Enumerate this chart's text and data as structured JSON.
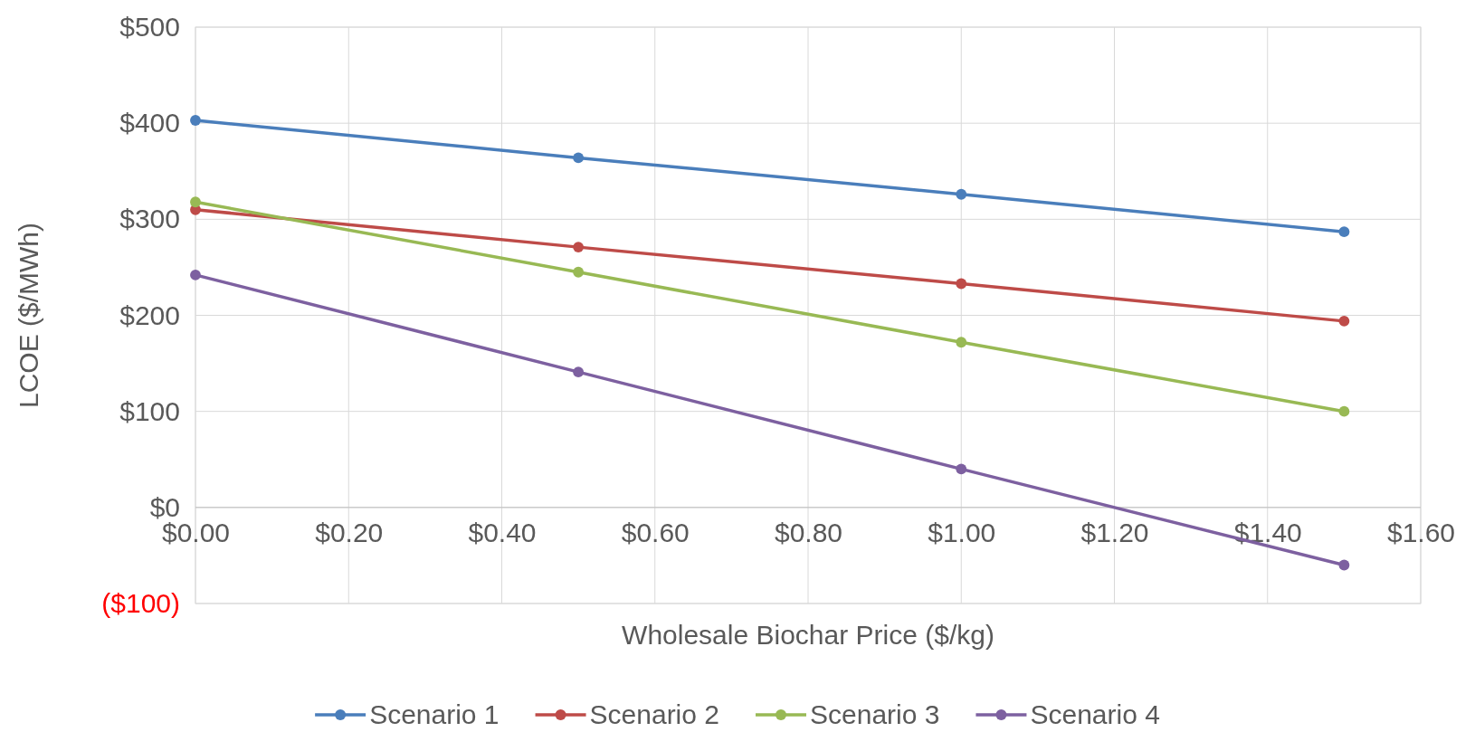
{
  "chart_data": {
    "type": "line",
    "xlabel": "Wholesale Biochar Price ($/kg)",
    "ylabel": "LCOE ($/MWh)",
    "x": [
      0,
      0.5,
      1,
      1.5
    ],
    "series": [
      {
        "name": "Scenario 1",
        "color": "#4a7ebb",
        "values": [
          403,
          364,
          326,
          287
        ]
      },
      {
        "name": "Scenario 2",
        "color": "#be4b48",
        "values": [
          310,
          271,
          233,
          194
        ]
      },
      {
        "name": "Scenario 3",
        "color": "#98b954",
        "values": [
          318,
          245,
          172,
          100
        ]
      },
      {
        "name": "Scenario 4",
        "color": "#7d60a0",
        "values": [
          242,
          141,
          40,
          -60
        ]
      }
    ],
    "xlim": [
      0,
      1.6
    ],
    "xticks": [
      {
        "value": 0,
        "label": "$0.00"
      },
      {
        "value": 0.2,
        "label": "$0.20"
      },
      {
        "value": 0.4,
        "label": "$0.40"
      },
      {
        "value": 0.6,
        "label": "$0.60"
      },
      {
        "value": 0.8,
        "label": "$0.80"
      },
      {
        "value": 1,
        "label": "$1.00"
      },
      {
        "value": 1.2,
        "label": "$1.20"
      },
      {
        "value": 1.4,
        "label": "$1.40"
      },
      {
        "value": 1.6,
        "label": "$1.60"
      }
    ],
    "ylim": [
      -100,
      500
    ],
    "yticks": [
      {
        "value": -100,
        "label": "($100)"
      },
      {
        "value": 0,
        "label": "$0"
      },
      {
        "value": 100,
        "label": "$100"
      },
      {
        "value": 200,
        "label": "$200"
      },
      {
        "value": 300,
        "label": "$300"
      },
      {
        "value": 400,
        "label": "$400"
      },
      {
        "value": 500,
        "label": "$500"
      }
    ],
    "grid": true,
    "legend": "bottom",
    "marker": "circle",
    "line_style": "solid"
  }
}
